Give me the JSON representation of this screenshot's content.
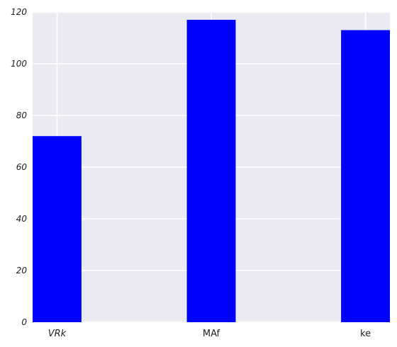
{
  "chart_data": {
    "type": "bar",
    "categories": [
      "VRk",
      "MAf",
      "ke"
    ],
    "category_italic": [
      true,
      false,
      false
    ],
    "values": [
      72,
      117,
      113
    ],
    "ylim": [
      0,
      120
    ],
    "yticks": [
      0,
      20,
      40,
      60,
      80,
      100,
      120
    ],
    "grid": true,
    "legend": "none",
    "colors": {
      "bar": "#0000ff",
      "background": "#eaeaf2",
      "grid": "#ffffff"
    }
  }
}
